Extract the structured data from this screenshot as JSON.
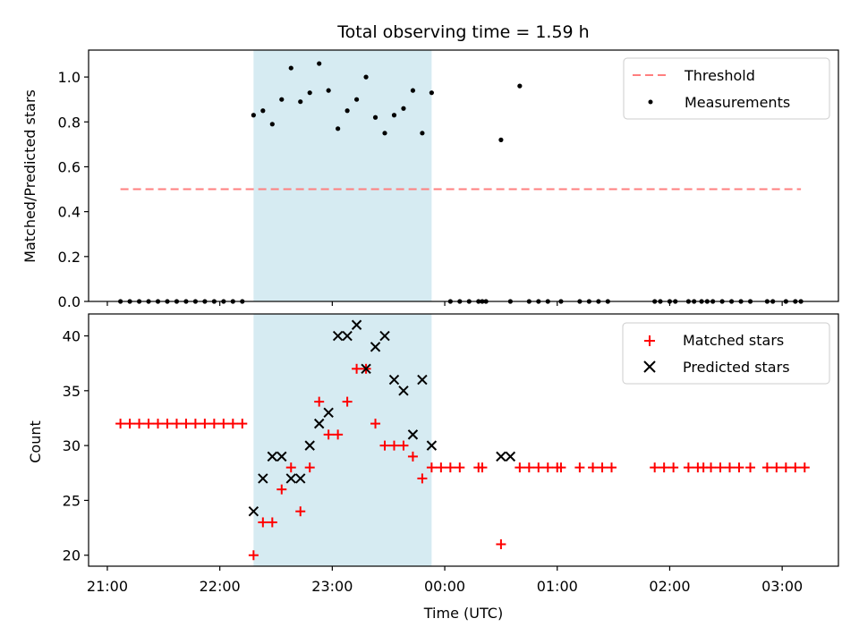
{
  "title": "Total observing time = 1.59 h",
  "xlabel": "Time (UTC)",
  "colors": {
    "threshold": "#ff7f7f",
    "shade": "#add8e6",
    "matched": "#ff0000",
    "predicted": "#000000",
    "measurement": "#000000"
  },
  "chart_data": [
    {
      "type": "scatter",
      "ylabel": "Matched/Predicted stars",
      "xlim": [
        "20:50",
        "03:30"
      ],
      "ylim": [
        0,
        1.12
      ],
      "yticks": [
        "0.0",
        "0.2",
        "0.4",
        "0.6",
        "0.8",
        "1.0"
      ],
      "xtick_labels_shown": false,
      "shaded_interval": [
        "22:18",
        "23:53"
      ],
      "legend_position": "top-right",
      "threshold": {
        "name": "Threshold",
        "y": 0.5,
        "x": [
          "21:07",
          "03:10"
        ]
      },
      "series": [
        {
          "name": "Measurements",
          "points": [
            [
              "21:07",
              0
            ],
            [
              "21:12",
              0
            ],
            [
              "21:17",
              0
            ],
            [
              "21:22",
              0
            ],
            [
              "21:27",
              0
            ],
            [
              "21:32",
              0
            ],
            [
              "21:37",
              0
            ],
            [
              "21:42",
              0
            ],
            [
              "21:47",
              0
            ],
            [
              "21:52",
              0
            ],
            [
              "21:57",
              0
            ],
            [
              "22:02",
              0
            ],
            [
              "22:07",
              0
            ],
            [
              "22:12",
              0
            ],
            [
              "22:18",
              0.83
            ],
            [
              "22:23",
              0.85
            ],
            [
              "22:28",
              0.79
            ],
            [
              "22:33",
              0.9
            ],
            [
              "22:38",
              1.04
            ],
            [
              "22:43",
              0.89
            ],
            [
              "22:48",
              0.93
            ],
            [
              "22:53",
              1.06
            ],
            [
              "22:58",
              0.94
            ],
            [
              "23:03",
              0.77
            ],
            [
              "23:08",
              0.85
            ],
            [
              "23:13",
              0.9
            ],
            [
              "23:18",
              1.0
            ],
            [
              "23:23",
              0.82
            ],
            [
              "23:28",
              0.75
            ],
            [
              "23:33",
              0.83
            ],
            [
              "23:38",
              0.86
            ],
            [
              "23:43",
              0.94
            ],
            [
              "23:48",
              0.75
            ],
            [
              "23:53",
              0.93
            ],
            [
              "00:03",
              0
            ],
            [
              "00:08",
              0
            ],
            [
              "00:13",
              0
            ],
            [
              "00:18",
              0
            ],
            [
              "00:20",
              0
            ],
            [
              "00:22",
              0
            ],
            [
              "00:30",
              0.72
            ],
            [
              "00:35",
              0
            ],
            [
              "00:40",
              0.96
            ],
            [
              "00:45",
              0
            ],
            [
              "00:50",
              0
            ],
            [
              "00:55",
              0
            ],
            [
              "01:02",
              0
            ],
            [
              "01:12",
              0
            ],
            [
              "01:17",
              0
            ],
            [
              "01:22",
              0
            ],
            [
              "01:27",
              0
            ],
            [
              "01:52",
              0
            ],
            [
              "01:55",
              0
            ],
            [
              "02:00",
              0
            ],
            [
              "02:03",
              0
            ],
            [
              "02:10",
              0
            ],
            [
              "02:13",
              0
            ],
            [
              "02:17",
              0
            ],
            [
              "02:20",
              0
            ],
            [
              "02:23",
              0
            ],
            [
              "02:28",
              0
            ],
            [
              "02:33",
              0
            ],
            [
              "02:38",
              0
            ],
            [
              "02:43",
              0
            ],
            [
              "02:52",
              0
            ],
            [
              "02:55",
              0
            ],
            [
              "03:02",
              0
            ],
            [
              "03:07",
              0
            ],
            [
              "03:10",
              0
            ]
          ]
        }
      ]
    },
    {
      "type": "scatter",
      "ylabel": "Count",
      "xlabel": "Time (UTC)",
      "xlim": [
        "20:50",
        "03:30"
      ],
      "ylim": [
        19,
        42
      ],
      "yticks": [
        "20",
        "25",
        "30",
        "35",
        "40"
      ],
      "xticks": [
        "21:00",
        "22:00",
        "23:00",
        "00:00",
        "01:00",
        "02:00",
        "03:00"
      ],
      "shaded_interval": [
        "22:18",
        "23:53"
      ],
      "legend_position": "top-right",
      "series": [
        {
          "name": "Matched stars",
          "marker": "plus",
          "points": [
            [
              "21:07",
              32
            ],
            [
              "21:12",
              32
            ],
            [
              "21:17",
              32
            ],
            [
              "21:22",
              32
            ],
            [
              "21:27",
              32
            ],
            [
              "21:32",
              32
            ],
            [
              "21:37",
              32
            ],
            [
              "21:42",
              32
            ],
            [
              "21:47",
              32
            ],
            [
              "21:52",
              32
            ],
            [
              "21:57",
              32
            ],
            [
              "22:02",
              32
            ],
            [
              "22:07",
              32
            ],
            [
              "22:12",
              32
            ],
            [
              "22:18",
              20
            ],
            [
              "22:23",
              23
            ],
            [
              "22:28",
              23
            ],
            [
              "22:33",
              26
            ],
            [
              "22:38",
              28
            ],
            [
              "22:43",
              24
            ],
            [
              "22:48",
              28
            ],
            [
              "22:53",
              34
            ],
            [
              "22:58",
              31
            ],
            [
              "23:03",
              31
            ],
            [
              "23:08",
              34
            ],
            [
              "23:13",
              37
            ],
            [
              "23:18",
              37
            ],
            [
              "23:23",
              32
            ],
            [
              "23:28",
              30
            ],
            [
              "23:33",
              30
            ],
            [
              "23:38",
              30
            ],
            [
              "23:43",
              29
            ],
            [
              "23:48",
              27
            ],
            [
              "23:53",
              28
            ],
            [
              "23:58",
              28
            ],
            [
              "00:03",
              28
            ],
            [
              "00:08",
              28
            ],
            [
              "00:18",
              28
            ],
            [
              "00:20",
              28
            ],
            [
              "00:30",
              21
            ],
            [
              "00:40",
              28
            ],
            [
              "00:45",
              28
            ],
            [
              "00:50",
              28
            ],
            [
              "00:55",
              28
            ],
            [
              "01:00",
              28
            ],
            [
              "01:02",
              28
            ],
            [
              "01:12",
              28
            ],
            [
              "01:19",
              28
            ],
            [
              "01:24",
              28
            ],
            [
              "01:29",
              28
            ],
            [
              "01:52",
              28
            ],
            [
              "01:57",
              28
            ],
            [
              "02:02",
              28
            ],
            [
              "02:10",
              28
            ],
            [
              "02:15",
              28
            ],
            [
              "02:18",
              28
            ],
            [
              "02:22",
              28
            ],
            [
              "02:27",
              28
            ],
            [
              "02:32",
              28
            ],
            [
              "02:37",
              28
            ],
            [
              "02:43",
              28
            ],
            [
              "02:52",
              28
            ],
            [
              "02:57",
              28
            ],
            [
              "03:02",
              28
            ],
            [
              "03:07",
              28
            ],
            [
              "03:12",
              28
            ]
          ]
        },
        {
          "name": "Predicted stars",
          "marker": "x",
          "points": [
            [
              "22:18",
              24
            ],
            [
              "22:23",
              27
            ],
            [
              "22:28",
              29
            ],
            [
              "22:33",
              29
            ],
            [
              "22:38",
              27
            ],
            [
              "22:43",
              27
            ],
            [
              "22:48",
              30
            ],
            [
              "22:53",
              32
            ],
            [
              "22:58",
              33
            ],
            [
              "23:03",
              40
            ],
            [
              "23:08",
              40
            ],
            [
              "23:13",
              41
            ],
            [
              "23:18",
              37
            ],
            [
              "23:23",
              39
            ],
            [
              "23:28",
              40
            ],
            [
              "23:33",
              36
            ],
            [
              "23:38",
              35
            ],
            [
              "23:43",
              31
            ],
            [
              "23:48",
              36
            ],
            [
              "23:53",
              30
            ],
            [
              "00:30",
              29
            ],
            [
              "00:35",
              29
            ]
          ]
        }
      ]
    }
  ]
}
